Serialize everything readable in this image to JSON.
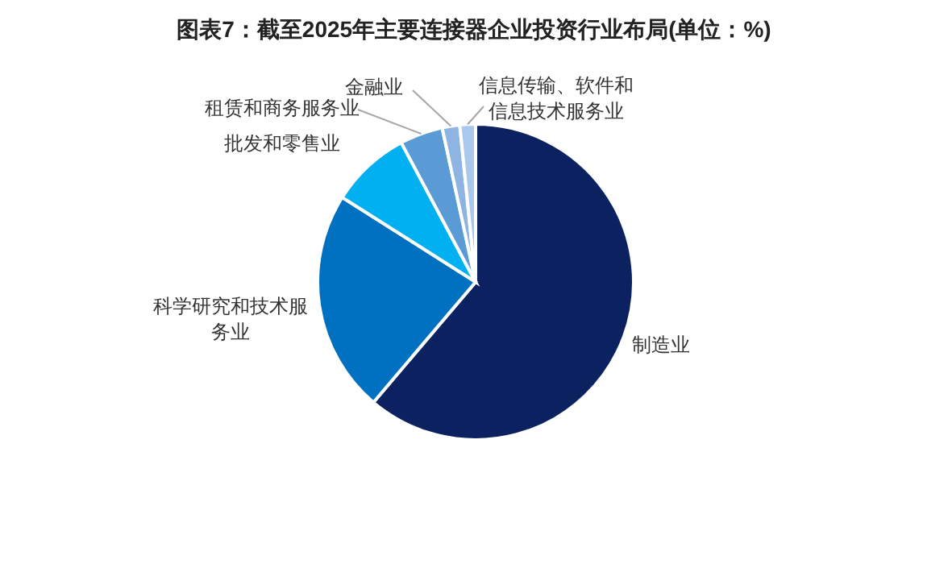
{
  "chart_data": {
    "type": "pie",
    "title": "图表7：截至2025年主要连接器企业投资行业布局(单位：%)",
    "categories": [
      "制造业",
      "科学研究和技术服务业",
      "批发和零售业",
      "租赁和商务服务业",
      "金融业",
      "信息传输、软件和信息技术服务业"
    ],
    "values": [
      61.2,
      22.8,
      8.2,
      4.4,
      1.8,
      1.6
    ],
    "colors": [
      "#0b2160",
      "#0070c0",
      "#00b0f0",
      "#5b9bd5",
      "#8eb4e3",
      "#a9c8ec"
    ]
  }
}
